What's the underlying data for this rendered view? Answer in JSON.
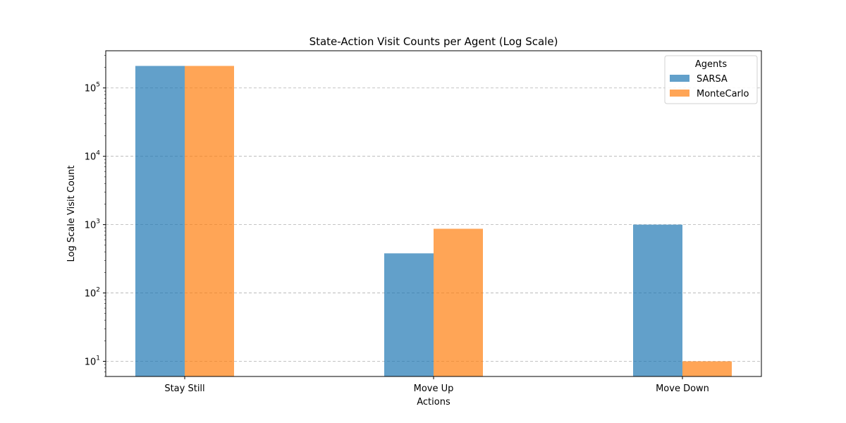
{
  "chart_data": {
    "type": "bar",
    "title": "State-Action Visit Counts per Agent (Log Scale)",
    "xlabel": "Actions",
    "ylabel": "Log Scale Visit Count",
    "categories": [
      "Stay Still",
      "Move Up",
      "Move Down"
    ],
    "series": [
      {
        "name": "SARSA",
        "values": [
          210000,
          380,
          1000
        ],
        "color": "#1f77b4"
      },
      {
        "name": "MonteCarlo",
        "values": [
          210000,
          870,
          10
        ],
        "color": "#ff7f0e"
      }
    ],
    "bar_opacity": 0.7,
    "yscale": "log",
    "ylim": [
      6,
      350000
    ],
    "yticks": [
      {
        "value": 10,
        "base": "10",
        "exp": "1"
      },
      {
        "value": 100,
        "base": "10",
        "exp": "2"
      },
      {
        "value": 1000,
        "base": "10",
        "exp": "3"
      },
      {
        "value": 10000,
        "base": "10",
        "exp": "4"
      },
      {
        "value": 100000,
        "base": "10",
        "exp": "5"
      }
    ],
    "grid": {
      "axis": "y",
      "style": "dashed",
      "color": "#b0b0b0"
    },
    "legend": {
      "title": "Agents",
      "placement": "top-right"
    }
  }
}
